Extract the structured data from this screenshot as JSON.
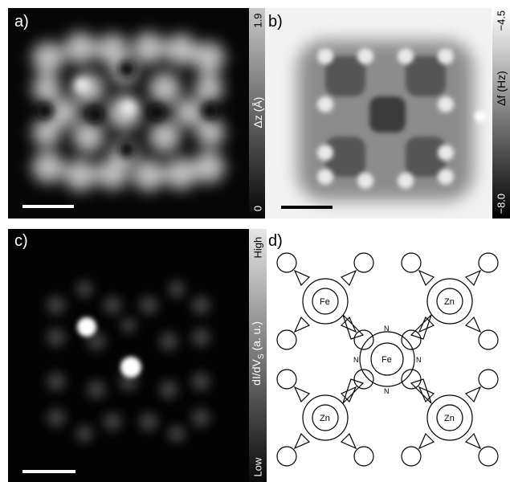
{
  "panels": {
    "a": {
      "label": "a)",
      "colorbar": {
        "top": "1.9",
        "bottom": "0",
        "title": "Δz (Å)"
      },
      "kind": "height-map"
    },
    "b": {
      "label": "b)",
      "colorbar": {
        "top": "−4.5",
        "bottom": "−8.0",
        "title": "Δf (Hz)"
      },
      "kind": "frequency-shift-map"
    },
    "c": {
      "label": "c)",
      "colorbar": {
        "top": "High",
        "bottom": "Low",
        "title": "dI/dV"
      },
      "colorbar_subscript": "S",
      "colorbar_unit": " (a. u.)",
      "kind": "conductance-map"
    },
    "d": {
      "label": "d)",
      "kind": "chemical-structure",
      "atoms": {
        "center": "Fe",
        "top_left": "Fe",
        "top_right": "Zn",
        "bottom_left": "Zn",
        "bottom_right": "Zn",
        "nitrogen": "N"
      }
    }
  },
  "colors": {
    "image_bg": "#050505",
    "text_on_dark": "#ffffff",
    "text_on_light": "#000000"
  }
}
